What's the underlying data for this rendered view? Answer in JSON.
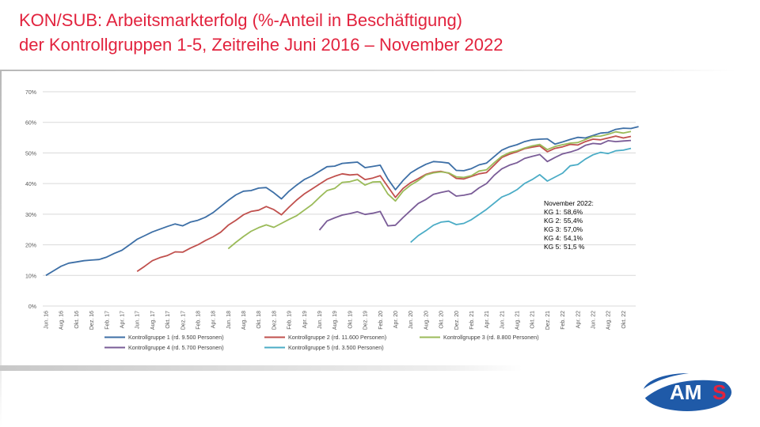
{
  "slide": {
    "title_line1": "KON/SUB: Arbeitsmarkterfolg (%-Anteil in Beschäftigung)",
    "title_line2": "der Kontrollgruppen 1-5, Zeitreihe Juni 2016 – November 2022",
    "logo_text_a": "AM",
    "logo_text_b": "S",
    "colors": {
      "title": "#e2233e",
      "logo_blue": "#1f5aa8",
      "logo_red": "#e2233e"
    }
  },
  "chart_data": {
    "type": "line",
    "x_tick_labels": [
      "Jun. 16",
      "Aug. 16",
      "Okt. 16",
      "Dez. 16",
      "Feb. 17",
      "Apr. 17",
      "Jun. 17",
      "Aug. 17",
      "Okt. 17",
      "Dez. 17",
      "Feb. 18",
      "Apr. 18",
      "Jun. 18",
      "Aug. 18",
      "Okt. 18",
      "Dez. 18",
      "Feb. 19",
      "Apr. 19",
      "Jun. 19",
      "Aug. 19",
      "Okt. 19",
      "Dez. 19",
      "Feb. 20",
      "Apr. 20",
      "Jun. 20",
      "Aug. 20",
      "Okt. 20",
      "Dez. 20",
      "Feb. 21",
      "Apr. 21",
      "Jun. 21",
      "Aug. 21",
      "Okt. 21",
      "Dez. 21",
      "Feb. 22",
      "Apr. 22",
      "Jun. 22",
      "Aug. 22",
      "Okt. 22"
    ],
    "y_tick_labels": [
      "0%",
      "10%",
      "20%",
      "30%",
      "40%",
      "50%",
      "60%",
      "70%"
    ],
    "ylim": [
      0,
      70
    ],
    "grid": true,
    "legend_position": "bottom",
    "series": [
      {
        "name": "Kontrollgruppe 1 (rd. 9.500 Personen)",
        "color": "#3d6fa6",
        "start_index": 0,
        "values": [
          10,
          11.5,
          13,
          14,
          14.4,
          14.8,
          15,
          15.2,
          16,
          17.2,
          18.2,
          20,
          21.8,
          23,
          24.2,
          25.1,
          26,
          26.8,
          26.2,
          27.4,
          28,
          29,
          30.5,
          32.5,
          34.5,
          36.3,
          37.5,
          37.7,
          38.5,
          38.7,
          37,
          35,
          37.5,
          39.5,
          41.3,
          42.5,
          44,
          45.5,
          45.7,
          46.6,
          46.8,
          47,
          45.2,
          45.6,
          46,
          41.5,
          38,
          41,
          43.5,
          45,
          46.3,
          47.2,
          47,
          46.7,
          44.3,
          44.2,
          44.9,
          46.1,
          46.7,
          48.8,
          50.9,
          52,
          52.7,
          53.7,
          54.3,
          54.5,
          54.6,
          52.9,
          53.6,
          54.4,
          55.1,
          54.9,
          55.7,
          56.5,
          56.7,
          57.7,
          58.1,
          58,
          58.6
        ]
      },
      {
        "name": "Kontrollgruppe 2 (rd. 11.600 Personen)",
        "color": "#c0504d",
        "start_index": 12,
        "values": [
          11.3,
          13,
          14.8,
          15.8,
          16.5,
          17.7,
          17.6,
          18.9,
          20,
          21.4,
          22.6,
          24.1,
          26.4,
          28,
          29.8,
          30.9,
          31.3,
          32.5,
          31.5,
          29.8,
          32.3,
          34.6,
          36.6,
          38.2,
          39.8,
          41.4,
          42.4,
          43.2,
          42.8,
          43,
          41.3,
          41.8,
          42.6,
          39,
          35.5,
          38.4,
          40.3,
          41.6,
          43,
          43.7,
          44,
          43.4,
          41.7,
          41.5,
          42.3,
          43.2,
          43.6,
          46,
          48.5,
          49.6,
          50.4,
          51.4,
          51.9,
          52.3,
          50.4,
          51.5,
          52,
          52.8,
          52.6,
          53.7,
          54.5,
          54.3,
          54.9,
          55.5,
          54.9,
          55.4
        ]
      },
      {
        "name": "Kontrollgruppe 3 (rd. 8.800 Personen)",
        "color": "#9bbb59",
        "start_index": 24,
        "values": [
          18.7,
          20.8,
          22.7,
          24.4,
          25.6,
          26.5,
          25.7,
          27,
          28.3,
          29.5,
          31.3,
          33.1,
          35.5,
          37.7,
          38.4,
          40.4,
          40.6,
          41.3,
          39.5,
          40.5,
          40.6,
          36.6,
          34.3,
          37.5,
          39.5,
          41,
          42.8,
          43.5,
          43.8,
          43.5,
          42.2,
          42,
          42.6,
          44.1,
          44.5,
          46.8,
          48.9,
          50.1,
          50.7,
          51.6,
          52.3,
          52.8,
          51.1,
          52.1,
          52.7,
          53.2,
          53.4,
          54.4,
          55.4,
          55.5,
          56.1,
          56.9,
          56.5,
          57
        ]
      },
      {
        "name": "Kontrollgruppe 4 (rd. 5.700 Personen)",
        "color": "#7a5c97",
        "start_index": 36,
        "values": [
          24.8,
          27.8,
          28.8,
          29.7,
          30.2,
          30.8,
          29.9,
          30.3,
          30.9,
          26.2,
          26.4,
          28.9,
          31.2,
          33.5,
          34.8,
          36.5,
          37.1,
          37.6,
          35.9,
          36.2,
          36.7,
          38.6,
          40,
          42.7,
          44.8,
          46,
          46.8,
          48.2,
          48.9,
          49.5,
          47.2,
          48.5,
          49.7,
          50.3,
          51.1,
          52.5,
          53.1,
          52.9,
          54,
          53.7,
          53.9,
          54.1
        ]
      },
      {
        "name": "Kontrollgruppe 5 (rd. 3.500 Personen)",
        "color": "#4bacc6",
        "start_index": 48,
        "values": [
          20.8,
          23,
          24.6,
          26.4,
          27.4,
          27.7,
          26.6,
          27,
          28.2,
          29.9,
          31.6,
          33.6,
          35.6,
          36.6,
          38,
          40,
          41.3,
          42.9,
          40.8,
          42.1,
          43.4,
          45.8,
          46.2,
          48,
          49.4,
          50.2,
          49.8,
          50.7,
          50.9,
          51.5
        ]
      }
    ],
    "annotation": {
      "heading": "November 2022:",
      "lines": [
        {
          "label": "KG 1:",
          "value": "58,6%"
        },
        {
          "label": "KG 2:",
          "value": "55,4%"
        },
        {
          "label": "KG 3:",
          "value": "57,0%"
        },
        {
          "label": "KG 4:",
          "value": "54,1%"
        },
        {
          "label": "KG 5:",
          "value": "51,5 %"
        }
      ]
    }
  }
}
